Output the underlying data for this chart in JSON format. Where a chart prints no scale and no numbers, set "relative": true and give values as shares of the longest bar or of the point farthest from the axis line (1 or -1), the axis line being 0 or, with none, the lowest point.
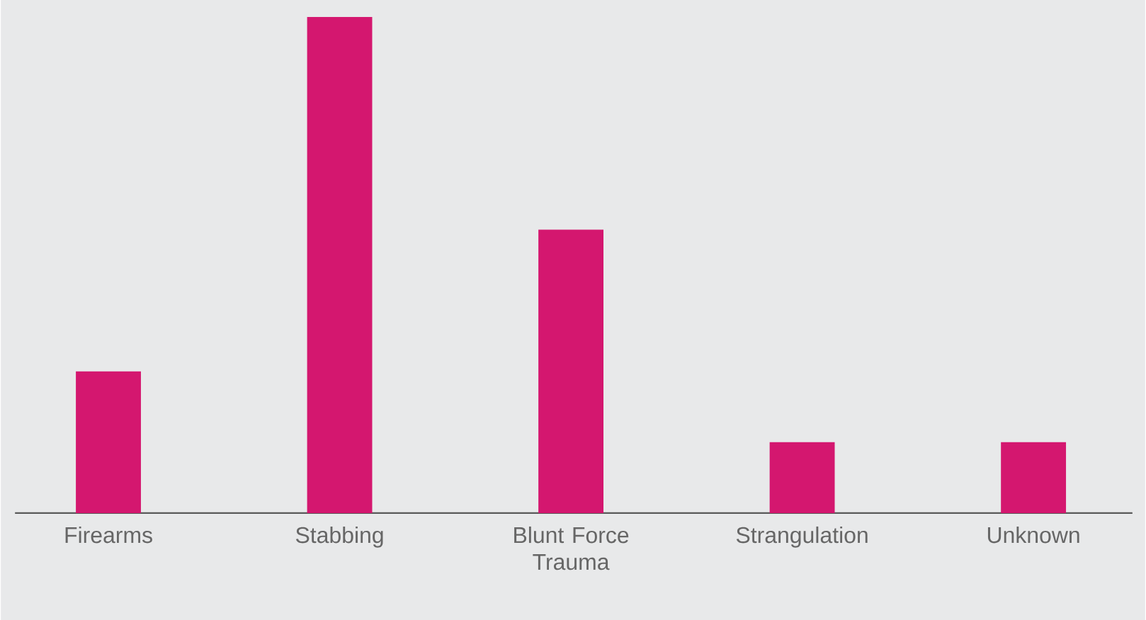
{
  "chart_data": {
    "type": "bar",
    "categories": [
      "Firearms",
      "Stabbing",
      "Blunt Force Trauma",
      "Strangulation",
      "Unknown"
    ],
    "values": [
      0.2857,
      1,
      0.5714,
      0.1429,
      0.1429
    ],
    "color": "#d4176f",
    "relative": true
  }
}
